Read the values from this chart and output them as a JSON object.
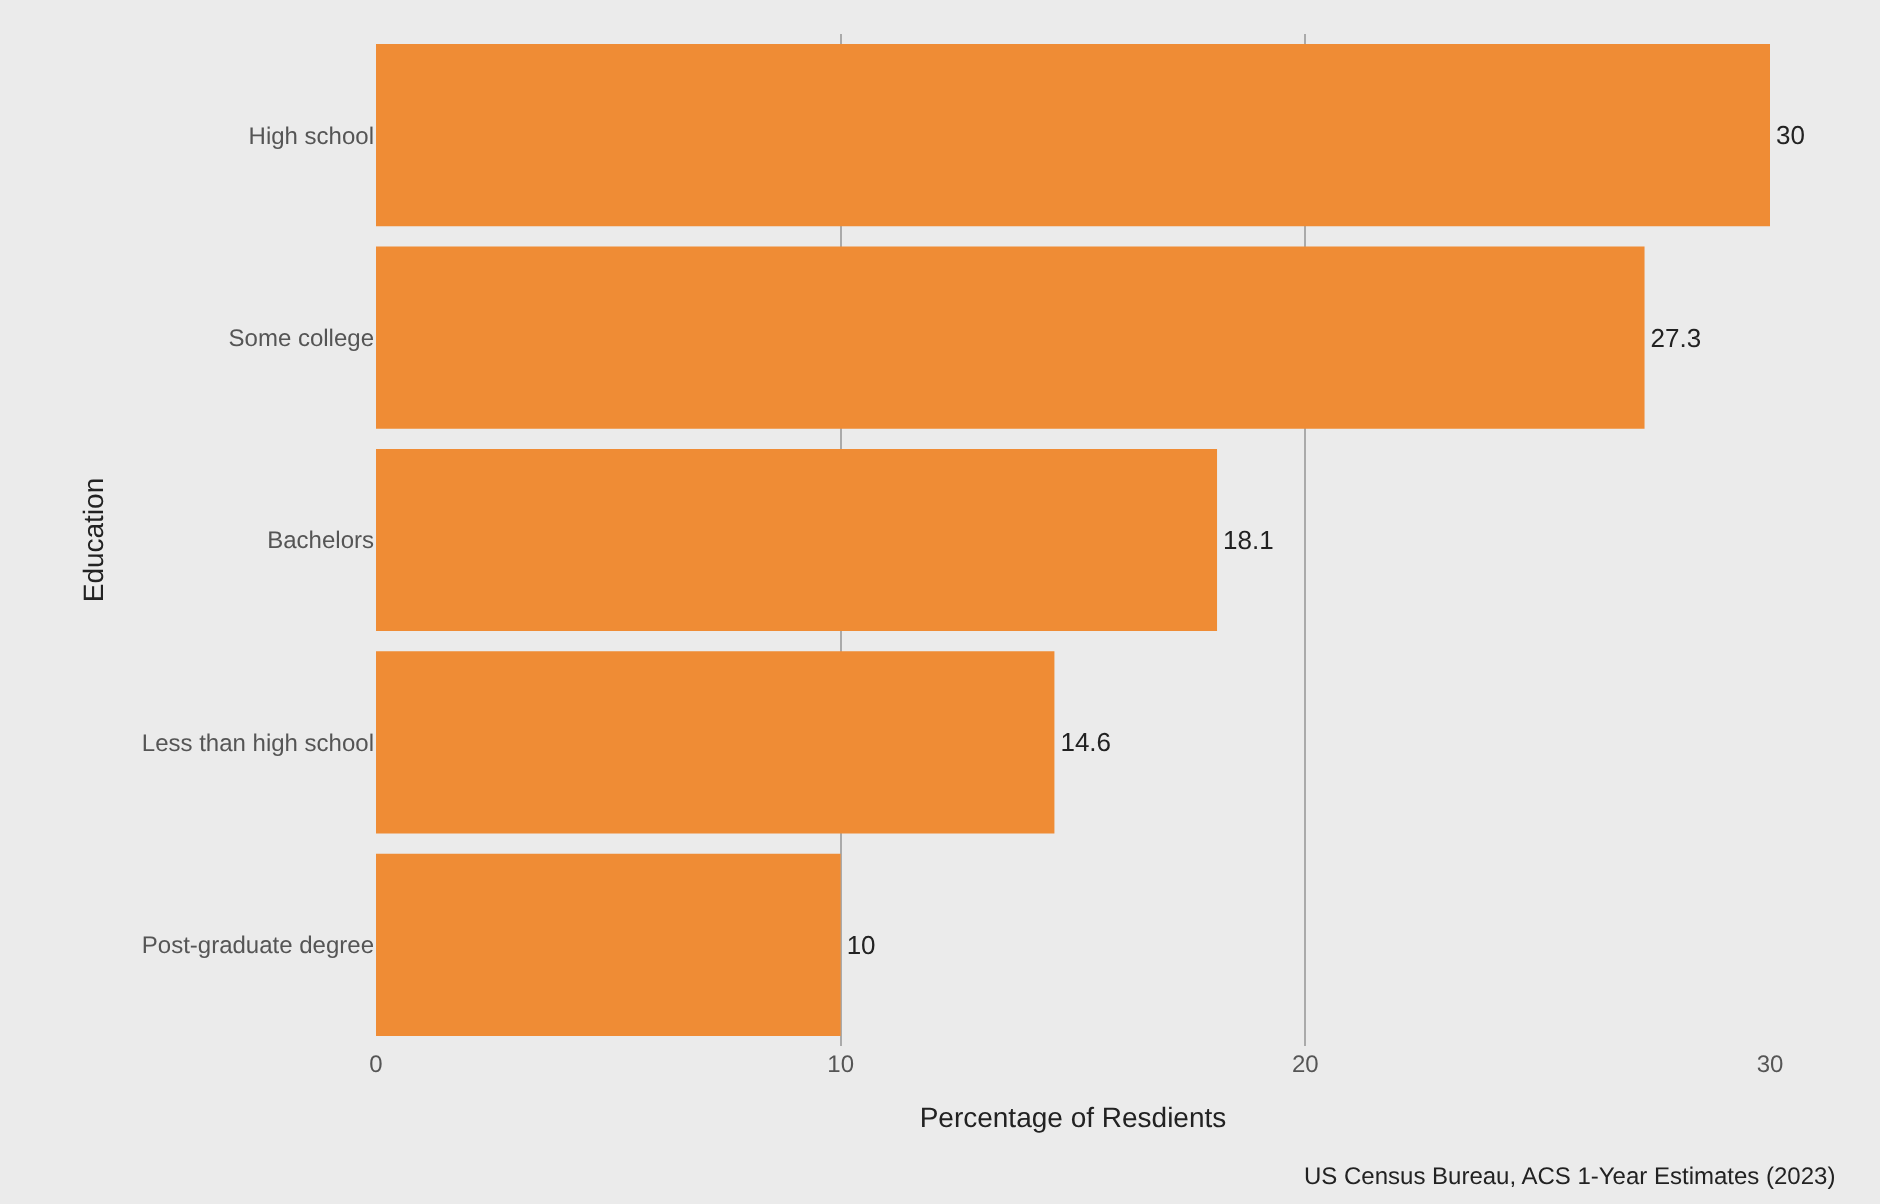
{
  "chart_data": {
    "type": "bar",
    "orientation": "horizontal",
    "xlabel": "Percentage of Resdients",
    "ylabel": "Education",
    "categories": [
      "High school",
      "Some college",
      "Bachelors",
      "Less than high school",
      "Post-graduate degree"
    ],
    "values": [
      30,
      27.3,
      18.1,
      14.6,
      10
    ],
    "color": "#ef8c35",
    "xlim": [
      0,
      30
    ],
    "xticks": [
      0,
      10,
      20,
      30
    ],
    "grid": "x",
    "data_labels": true,
    "legend": false,
    "annotations": [
      "US Census Bureau, ACS 1-Year Estimates (2023)"
    ]
  }
}
